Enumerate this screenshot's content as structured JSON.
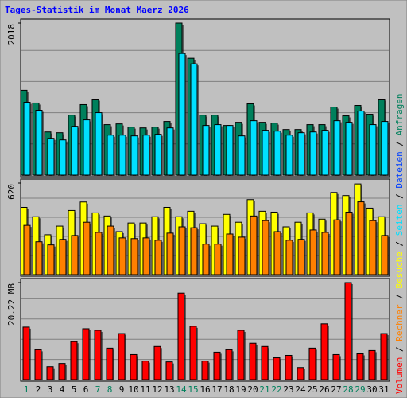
{
  "title": "Tages-Statistik im Monat Maerz 2026",
  "categories": [
    "1",
    "2",
    "3",
    "4",
    "5",
    "6",
    "7",
    "8",
    "9",
    "10",
    "11",
    "12",
    "13",
    "14",
    "15",
    "16",
    "17",
    "18",
    "19",
    "20",
    "21",
    "22",
    "23",
    "24",
    "25",
    "26",
    "27",
    "28",
    "29",
    "30",
    "31"
  ],
  "category_colors": [
    "#00805c",
    "#000000",
    "#000000",
    "#000000",
    "#000000",
    "#000000",
    "#00805c",
    "#00805c",
    "#000000",
    "#000000",
    "#000000",
    "#000000",
    "#000000",
    "#00805c",
    "#00805c",
    "#000000",
    "#000000",
    "#000000",
    "#000000",
    "#000000",
    "#00805c",
    "#00805c",
    "#000000",
    "#000000",
    "#000000",
    "#000000",
    "#000000",
    "#00805c",
    "#00805c",
    "#000000",
    "#000000"
  ],
  "legend_separator": " / ",
  "legend": [
    {
      "text": "Volumen",
      "color": "#ff0000"
    },
    {
      "text": "Rechner",
      "color": "#ff8000"
    },
    {
      "text": "Besuche",
      "color": "#ffff00"
    },
    {
      "text": "Seiten",
      "color": "#00e0ff"
    },
    {
      "text": "Dateien",
      "color": "#0040ff"
    },
    {
      "text": "Anfragen",
      "color": "#00805c"
    }
  ],
  "chart_data": [
    {
      "type": "bar",
      "ylim": [
        0,
        2018
      ],
      "yticks": [
        2018
      ],
      "series": [
        {
          "color": "#00805c",
          "values": [
            1131,
            962,
            581,
            571,
            803,
            941,
            1014,
            677,
            687,
            645,
            634,
            645,
            719,
            2018,
            1554,
            803,
            803,
            666,
            708,
            951,
            708,
            698,
            613,
            613,
            677,
            677,
            909,
            793,
            930,
            814,
            1014
          ]
        },
        {
          "color": "#00e0ff",
          "values": [
            972,
            867,
            497,
            476,
            655,
            740,
            835,
            539,
            539,
            529,
            539,
            550,
            634,
            1617,
            1480,
            666,
            677,
            666,
            529,
            729,
            603,
            592,
            539,
            571,
            581,
            603,
            729,
            708,
            856,
            677,
            719
          ]
        }
      ]
    },
    {
      "type": "bar",
      "ylim": [
        0,
        620
      ],
      "yticks": [
        620
      ],
      "series": [
        {
          "color": "#ffff00",
          "values": [
            457,
            394,
            273,
            331,
            436,
            493,
            420,
            399,
            294,
            352,
            352,
            394,
            457,
            394,
            431,
            347,
            331,
            410,
            357,
            509,
            431,
            425,
            326,
            357,
            420,
            378,
            557,
            536,
            614,
            452,
            394
          ]
        },
        {
          "color": "#ff8000",
          "values": [
            336,
            226,
            205,
            242,
            268,
            357,
            289,
            331,
            252,
            247,
            252,
            236,
            284,
            326,
            320,
            210,
            210,
            278,
            257,
            399,
            368,
            294,
            236,
            242,
            305,
            289,
            373,
            425,
            494,
            368,
            268
          ]
        }
      ]
    },
    {
      "type": "bar",
      "ylim": [
        0,
        20.22
      ],
      "yticks": [
        {
          "value": 20.22,
          "label": "20.22 MB"
        }
      ],
      "series": [
        {
          "color": "#ff0000",
          "values": [
            11.03,
            6.35,
            2.84,
            3.51,
            8.02,
            10.69,
            10.36,
            6.68,
            9.69,
            5.35,
            4.01,
            7.02,
            3.84,
            18.05,
            11.2,
            4.01,
            5.85,
            6.35,
            10.36,
            7.69,
            7.02,
            4.68,
            5.18,
            2.67,
            6.68,
            11.7,
            5.35,
            20.22,
            5.51,
            6.18,
            9.69
          ]
        }
      ]
    }
  ]
}
